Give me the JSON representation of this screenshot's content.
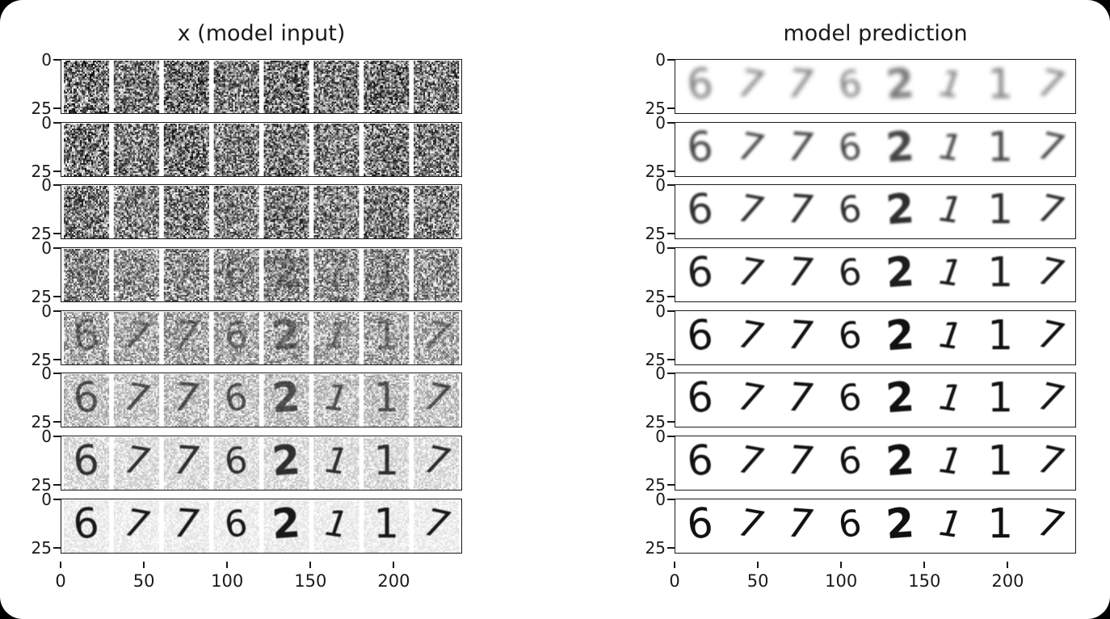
{
  "figure": {
    "background": "#ffffff",
    "corner_mask": "#000000",
    "ink_color": "#1a1a1a",
    "description": "Diffusion-model denoising visualisation on MNIST: each row is one step of the reverse process (top = most noisy, bottom = clean)."
  },
  "chart_data": [
    {
      "type": "heatmap",
      "panel_side": "left",
      "title": "x (model input)",
      "rows": 8,
      "columns": 8,
      "digit_labels": [
        "6",
        "7",
        "7",
        "6",
        "2",
        "1",
        "1",
        "7"
      ],
      "x_ticks": [
        "0",
        "50",
        "100",
        "150",
        "200"
      ],
      "x_tick_values": [
        0,
        50,
        100,
        150,
        200
      ],
      "x_axis_range": [
        0,
        241
      ],
      "y_ticks": [
        "0",
        "25"
      ],
      "y_axis_range_per_row": [
        0,
        28
      ],
      "row_noise_alpha": [
        1.0,
        0.97,
        0.92,
        0.8,
        0.62,
        0.42,
        0.25,
        0.13
      ],
      "row_digit_alpha": [
        0.0,
        0.06,
        0.15,
        0.3,
        0.5,
        0.68,
        0.85,
        0.97
      ],
      "row_digit_blur": [
        2.5,
        2.2,
        2.0,
        1.8,
        1.5,
        1.2,
        1.0,
        0.8
      ],
      "annotation": "Strips of 8 MNIST images (28x28 each); pure Gaussian noise in top rows, digits emerge toward bottom row."
    },
    {
      "type": "heatmap",
      "panel_side": "right",
      "title": "model prediction",
      "rows": 8,
      "columns": 8,
      "digit_labels": [
        "6",
        "7",
        "7",
        "6",
        "2",
        "1",
        "1",
        "7"
      ],
      "x_ticks": [
        "0",
        "50",
        "100",
        "150",
        "200"
      ],
      "x_tick_values": [
        0,
        50,
        100,
        150,
        200
      ],
      "x_axis_range": [
        0,
        241
      ],
      "y_ticks": [
        "0",
        "25"
      ],
      "y_axis_range_per_row": [
        0,
        28
      ],
      "row_noise_alpha": [
        0,
        0,
        0,
        0,
        0,
        0,
        0,
        0
      ],
      "row_digit_alpha": [
        0.55,
        0.78,
        0.88,
        0.95,
        1.0,
        1.0,
        1.0,
        1.0
      ],
      "row_digit_blur": [
        5.5,
        3.2,
        2.3,
        1.7,
        1.3,
        1.0,
        0.8,
        0.6
      ],
      "annotation": "Model's predicted clean digits at each step: very blurry blobs at top, sharp digits 6 7 7 6 2 1 1 7 at bottom."
    }
  ]
}
